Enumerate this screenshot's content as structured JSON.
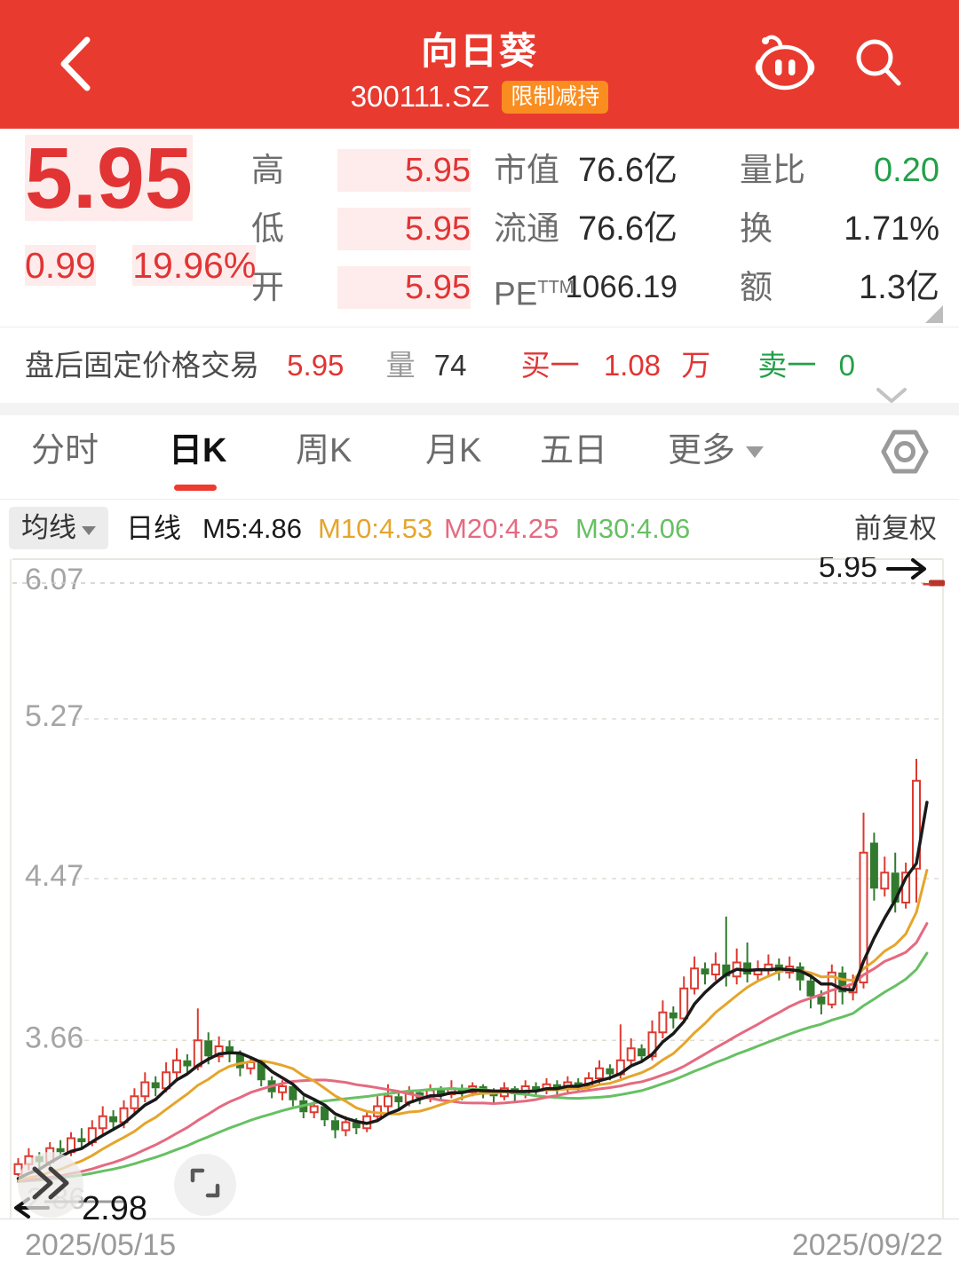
{
  "header": {
    "title": "向日葵",
    "code": "300111.SZ",
    "badge": "限制减持"
  },
  "quote": {
    "price": "5.95",
    "change": "0.99",
    "change_pct": "19.96%",
    "stats": [
      {
        "label": "高",
        "value": "5.95",
        "color": "red"
      },
      {
        "label": "低",
        "value": "5.95",
        "color": "red"
      },
      {
        "label": "开",
        "value": "5.95",
        "color": "red"
      },
      {
        "label": "市值",
        "value": "76.6亿",
        "color": "dark"
      },
      {
        "label": "流通",
        "value": "76.6亿",
        "color": "dark"
      },
      {
        "label": "PE",
        "label_sup": "TTM",
        "value": "1066.19",
        "color": "dark"
      },
      {
        "label": "量比",
        "value": "0.20",
        "color": "green"
      },
      {
        "label": "换",
        "value": "1.71%",
        "color": "dark"
      },
      {
        "label": "额",
        "value": "1.3亿",
        "color": "dark"
      }
    ]
  },
  "afterhours": {
    "title": "盘后固定价格交易",
    "price": "5.95",
    "volume_label": "量",
    "volume": "74",
    "bid_label": "买一",
    "bid_value": "1.08",
    "bid_unit": "万",
    "ask_label": "卖一",
    "ask_value": "0"
  },
  "tabs": [
    {
      "label": "分时",
      "active": false
    },
    {
      "label": "日K",
      "active": true
    },
    {
      "label": "周K",
      "active": false
    },
    {
      "label": "月K",
      "active": false
    },
    {
      "label": "五日",
      "active": false
    },
    {
      "label": "更多",
      "active": false
    }
  ],
  "ma_bar": {
    "avg_label": "均线",
    "period_label": "日线",
    "m5": "M5:4.86",
    "m10": "M10:4.53",
    "m20": "M20:4.25",
    "m30": "M30:4.06",
    "adjust_label": "前复权"
  },
  "colors": {
    "header_red": "#e93a2f",
    "text_red": "#e23434",
    "text_green": "#22a049",
    "badge_orange": "#f98d20",
    "candle_up": "#dd3a30",
    "candle_down": "#327a2e",
    "ma5": "#1a1a1a",
    "ma10": "#e5a52b",
    "ma20": "#e56a80",
    "ma30": "#67c063",
    "tab_active_underline": "#ee3b30"
  },
  "chart_data": {
    "type": "candlestick",
    "legend": [
      "M5",
      "M10",
      "M20",
      "M30"
    ],
    "axis": {
      "max": 6.07,
      "min": 2.86
    },
    "y_axis_ticks": [
      {
        "label": "6.07",
        "value": 6.07
      },
      {
        "label": "5.27",
        "value": 5.27
      },
      {
        "label": "4.47",
        "value": 4.47
      },
      {
        "label": "3.66",
        "value": 3.66
      }
    ],
    "y_min_ghost_label": "2.86",
    "price_line": {
      "label": "5.95",
      "value": 5.95
    },
    "low_marker": {
      "label": "2.98",
      "value": 2.98
    },
    "x_labels": [
      "2025/05/15",
      "2025/09/22"
    ],
    "ma_seed_close": 2.95,
    "ma_lines": [
      {
        "name": "M5",
        "window": 5
      },
      {
        "name": "M10",
        "window": 10
      },
      {
        "name": "M20",
        "window": 20
      },
      {
        "name": "M30",
        "window": 30
      }
    ],
    "candles": [
      [
        2.99,
        3.04,
        2.98,
        3.07
      ],
      [
        3.04,
        3.08,
        3.01,
        3.12
      ],
      [
        3.08,
        3.05,
        3.02,
        3.1
      ],
      [
        3.05,
        3.12,
        3.03,
        3.15
      ],
      [
        3.12,
        3.1,
        3.07,
        3.16
      ],
      [
        3.1,
        3.17,
        3.08,
        3.2
      ],
      [
        3.17,
        3.15,
        3.12,
        3.22
      ],
      [
        3.15,
        3.22,
        3.13,
        3.26
      ],
      [
        3.22,
        3.28,
        3.19,
        3.33
      ],
      [
        3.28,
        3.25,
        3.22,
        3.31
      ],
      [
        3.25,
        3.32,
        3.22,
        3.36
      ],
      [
        3.32,
        3.38,
        3.29,
        3.42
      ],
      [
        3.38,
        3.45,
        3.35,
        3.5
      ],
      [
        3.45,
        3.42,
        3.38,
        3.48
      ],
      [
        3.42,
        3.5,
        3.4,
        3.55
      ],
      [
        3.5,
        3.56,
        3.47,
        3.62
      ],
      [
        3.56,
        3.53,
        3.49,
        3.59
      ],
      [
        3.53,
        3.66,
        3.51,
        3.82
      ],
      [
        3.66,
        3.58,
        3.54,
        3.7
      ],
      [
        3.58,
        3.63,
        3.55,
        3.68
      ],
      [
        3.63,
        3.59,
        3.55,
        3.66
      ],
      [
        3.59,
        3.52,
        3.48,
        3.61
      ],
      [
        3.52,
        3.55,
        3.49,
        3.58
      ],
      [
        3.55,
        3.46,
        3.43,
        3.56
      ],
      [
        3.46,
        3.4,
        3.37,
        3.48
      ],
      [
        3.4,
        3.43,
        3.36,
        3.46
      ],
      [
        3.43,
        3.36,
        3.33,
        3.44
      ],
      [
        3.36,
        3.3,
        3.27,
        3.38
      ],
      [
        3.3,
        3.33,
        3.27,
        3.36
      ],
      [
        3.33,
        3.26,
        3.23,
        3.34
      ],
      [
        3.26,
        3.21,
        3.17,
        3.28
      ],
      [
        3.21,
        3.25,
        3.18,
        3.28
      ],
      [
        3.25,
        3.22,
        3.19,
        3.27
      ],
      [
        3.22,
        3.28,
        3.2,
        3.31
      ],
      [
        3.28,
        3.33,
        3.25,
        3.38
      ],
      [
        3.33,
        3.38,
        3.3,
        3.44
      ],
      [
        3.38,
        3.35,
        3.31,
        3.4
      ],
      [
        3.35,
        3.4,
        3.33,
        3.43
      ],
      [
        3.4,
        3.37,
        3.34,
        3.41
      ],
      [
        3.37,
        3.41,
        3.35,
        3.44
      ],
      [
        3.41,
        3.39,
        3.36,
        3.43
      ],
      [
        3.39,
        3.42,
        3.37,
        3.46
      ],
      [
        3.42,
        3.4,
        3.36,
        3.44
      ],
      [
        3.4,
        3.43,
        3.38,
        3.45
      ],
      [
        3.43,
        3.4,
        3.37,
        3.44
      ],
      [
        3.4,
        3.38,
        3.34,
        3.42
      ],
      [
        3.38,
        3.42,
        3.36,
        3.45
      ],
      [
        3.42,
        3.39,
        3.35,
        3.43
      ],
      [
        3.39,
        3.43,
        3.37,
        3.46
      ],
      [
        3.43,
        3.41,
        3.38,
        3.45
      ],
      [
        3.41,
        3.44,
        3.39,
        3.47
      ],
      [
        3.44,
        3.42,
        3.38,
        3.46
      ],
      [
        3.42,
        3.45,
        3.4,
        3.48
      ],
      [
        3.45,
        3.43,
        3.4,
        3.47
      ],
      [
        3.43,
        3.47,
        3.41,
        3.5
      ],
      [
        3.47,
        3.52,
        3.44,
        3.56
      ],
      [
        3.52,
        3.49,
        3.46,
        3.54
      ],
      [
        3.49,
        3.56,
        3.47,
        3.74
      ],
      [
        3.56,
        3.62,
        3.53,
        3.67
      ],
      [
        3.62,
        3.58,
        3.55,
        3.64
      ],
      [
        3.58,
        3.7,
        3.56,
        3.76
      ],
      [
        3.7,
        3.8,
        3.67,
        3.86
      ],
      [
        3.8,
        3.77,
        3.72,
        3.83
      ],
      [
        3.77,
        3.92,
        3.75,
        3.98
      ],
      [
        3.92,
        4.02,
        3.89,
        4.08
      ],
      [
        4.02,
        3.99,
        3.94,
        4.05
      ],
      [
        3.99,
        4.04,
        3.96,
        4.1
      ],
      [
        4.04,
        3.98,
        3.93,
        4.28
      ],
      [
        3.98,
        4.05,
        3.94,
        4.12
      ],
      [
        4.05,
        3.99,
        3.95,
        4.15
      ],
      [
        3.99,
        4.01,
        3.96,
        4.06
      ],
      [
        4.01,
        4.04,
        3.98,
        4.09
      ],
      [
        4.04,
        4.0,
        3.96,
        4.07
      ],
      [
        4.0,
        4.03,
        3.97,
        4.08
      ],
      [
        4.03,
        3.96,
        3.91,
        4.05
      ],
      [
        3.96,
        3.88,
        3.82,
        3.98
      ],
      [
        3.88,
        3.84,
        3.79,
        3.91
      ],
      [
        3.84,
        4.0,
        3.82,
        4.04
      ],
      [
        4.0,
        3.9,
        3.84,
        4.03
      ],
      [
        3.9,
        3.94,
        3.86,
        3.99
      ],
      [
        3.95,
        4.6,
        3.92,
        4.8
      ],
      [
        4.65,
        4.42,
        4.36,
        4.7
      ],
      [
        4.42,
        4.5,
        4.38,
        4.58
      ],
      [
        4.5,
        4.35,
        4.3,
        4.6
      ],
      [
        4.35,
        4.5,
        4.32,
        4.55
      ],
      [
        4.52,
        4.96,
        4.35,
        5.07
      ],
      [
        5.95,
        5.95,
        5.95,
        5.95
      ]
    ]
  }
}
